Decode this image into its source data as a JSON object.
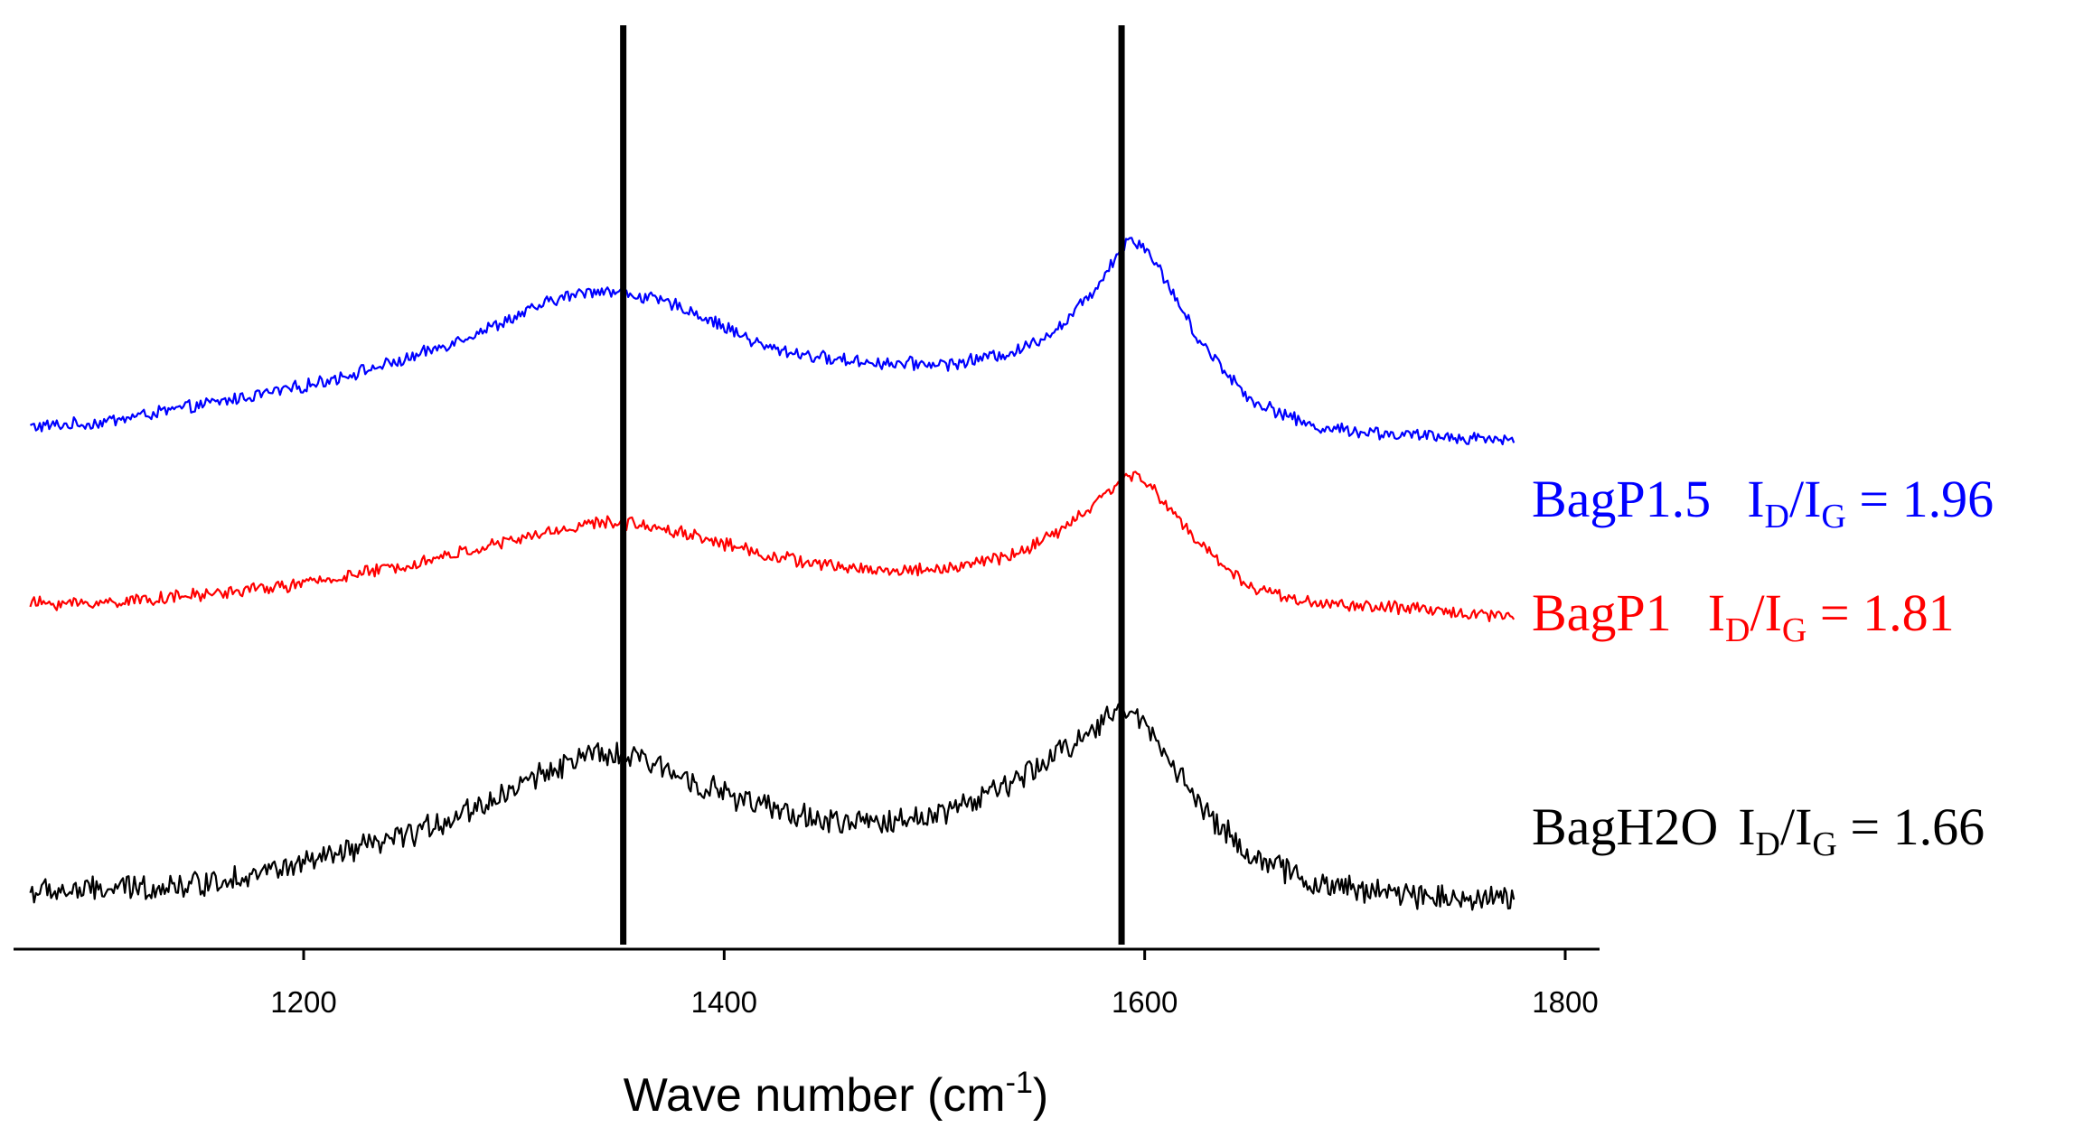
{
  "chart_data": {
    "type": "line",
    "title": "",
    "xlabel": "Wave number (cm",
    "xlabel_superscript": "-1",
    "xlabel_suffix": ")",
    "ylabel": "",
    "xlim": [
      1065,
      1810
    ],
    "x_ticks": [
      1200,
      1400,
      1600,
      1800
    ],
    "x_tick_labels": [
      "1200",
      "1400",
      "1600",
      "1800"
    ],
    "y_axis_visible": false,
    "grid": false,
    "reference_lines": [
      1352,
      1589
    ],
    "colors": {
      "BagP1.5": "#0000ff",
      "BagP1": "#ff0000",
      "BagH2O": "#000000",
      "axis": "#000000"
    },
    "series": [
      {
        "name": "BagP1.5",
        "color": "#0000ff",
        "ratio_label": {
          "I": "I",
          "D": "D",
          "slash": "/I",
          "G": "G",
          "eq": " = 1.96"
        },
        "ratio": 1.96,
        "x": [
          1070,
          1100,
          1150,
          1200,
          1250,
          1290,
          1320,
          1340,
          1360,
          1380,
          1400,
          1420,
          1450,
          1480,
          1510,
          1540,
          1560,
          1575,
          1585,
          1592,
          1600,
          1610,
          1625,
          1650,
          1680,
          1720,
          1776
        ],
        "values": [
          0.35,
          0.37,
          0.48,
          0.6,
          0.77,
          0.97,
          1.14,
          1.2,
          1.16,
          1.09,
          0.97,
          0.84,
          0.77,
          0.74,
          0.74,
          0.82,
          0.97,
          1.18,
          1.38,
          1.52,
          1.47,
          1.26,
          0.9,
          0.52,
          0.35,
          0.3,
          0.27
        ]
      },
      {
        "name": "BagP1",
        "color": "#ff0000",
        "ratio_label": {
          "I": "I",
          "D": "D",
          "slash": "/I",
          "G": "G",
          "eq": " = 1.81"
        },
        "ratio": 1.81,
        "x": [
          1070,
          1100,
          1150,
          1200,
          1250,
          1290,
          1320,
          1340,
          1360,
          1380,
          1400,
          1420,
          1450,
          1480,
          1510,
          1540,
          1560,
          1575,
          1585,
          1592,
          1600,
          1610,
          1625,
          1650,
          1680,
          1720,
          1776
        ],
        "values": [
          0.0,
          0.0,
          0.05,
          0.12,
          0.24,
          0.36,
          0.45,
          0.5,
          0.49,
          0.44,
          0.37,
          0.3,
          0.23,
          0.2,
          0.22,
          0.31,
          0.45,
          0.6,
          0.72,
          0.79,
          0.76,
          0.62,
          0.38,
          0.1,
          0.0,
          -0.03,
          -0.08
        ]
      },
      {
        "name": "BagH2O",
        "color": "#000000",
        "ratio_label": {
          "I": "I",
          "D": "D",
          "slash": "/I",
          "G": "G",
          "eq": " = 1.66"
        },
        "ratio": 1.66,
        "x": [
          1070,
          1100,
          1150,
          1200,
          1250,
          1290,
          1320,
          1340,
          1360,
          1380,
          1400,
          1420,
          1450,
          1480,
          1510,
          1540,
          1560,
          1575,
          1585,
          1592,
          1600,
          1610,
          1625,
          1650,
          1680,
          1720,
          1776
        ],
        "values": [
          -0.35,
          -0.34,
          -0.3,
          -0.18,
          0.0,
          0.22,
          0.43,
          0.5,
          0.47,
          0.37,
          0.26,
          0.17,
          0.08,
          0.08,
          0.17,
          0.34,
          0.52,
          0.66,
          0.76,
          0.77,
          0.7,
          0.52,
          0.2,
          -0.12,
          -0.3,
          -0.36,
          -0.4
        ]
      }
    ]
  }
}
